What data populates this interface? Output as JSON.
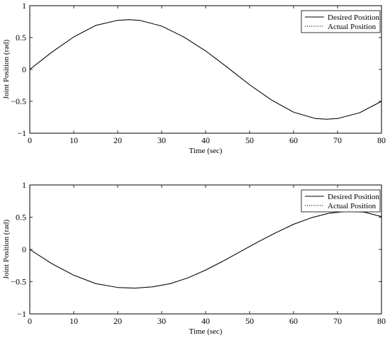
{
  "chart_data": [
    {
      "type": "line",
      "title": "",
      "xlabel": "Time (sec)",
      "ylabel": "Joint Position (rad)",
      "xlim": [
        0,
        80
      ],
      "ylim": [
        -1,
        1
      ],
      "xticks": [
        0,
        10,
        20,
        30,
        40,
        50,
        60,
        70,
        80
      ],
      "yticks": [
        -1,
        -0.5,
        0,
        0.5,
        1
      ],
      "xtick_labels": [
        "0",
        "10",
        "20",
        "30",
        "40",
        "50",
        "60",
        "70",
        "80"
      ],
      "ytick_labels": [
        "−1",
        "−0.5",
        "0",
        "0.5",
        "1"
      ],
      "grid": false,
      "legend_position": "top-right",
      "series": [
        {
          "name": "Desired Position",
          "style": "solid",
          "color": "#000000",
          "x": [
            0,
            5,
            10,
            15,
            20,
            22.5,
            25,
            30,
            35,
            40,
            45,
            50,
            55,
            60,
            65,
            67.5,
            70,
            75,
            80
          ],
          "y": [
            0,
            0.27,
            0.51,
            0.69,
            0.77,
            0.78,
            0.77,
            0.68,
            0.51,
            0.29,
            0.03,
            -0.24,
            -0.48,
            -0.67,
            -0.77,
            -0.78,
            -0.77,
            -0.68,
            -0.5
          ]
        },
        {
          "name": "Actual Position",
          "style": "dotted",
          "color": "#000000",
          "x": [
            0,
            5,
            10,
            15,
            20,
            22.5,
            25,
            30,
            35,
            40,
            45,
            50,
            55,
            60,
            65,
            67.5,
            70,
            75,
            80
          ],
          "y": [
            0,
            0.27,
            0.51,
            0.69,
            0.77,
            0.78,
            0.77,
            0.68,
            0.51,
            0.29,
            0.03,
            -0.24,
            -0.48,
            -0.67,
            -0.77,
            -0.78,
            -0.77,
            -0.68,
            -0.5
          ]
        }
      ]
    },
    {
      "type": "line",
      "title": "",
      "xlabel": "Time (sec)",
      "ylabel": "Joint Position (rad)",
      "xlim": [
        0,
        80
      ],
      "ylim": [
        -1,
        1
      ],
      "xticks": [
        0,
        10,
        20,
        30,
        40,
        50,
        60,
        70,
        80
      ],
      "yticks": [
        -1,
        -0.5,
        0,
        0.5,
        1
      ],
      "xtick_labels": [
        "0",
        "10",
        "20",
        "30",
        "40",
        "50",
        "60",
        "70",
        "80"
      ],
      "ytick_labels": [
        "−1",
        "−0.5",
        "0",
        "0.5",
        "1"
      ],
      "grid": false,
      "legend_position": "top-right",
      "series": [
        {
          "name": "Desired Position",
          "style": "solid",
          "color": "#000000",
          "x": [
            0,
            5,
            10,
            15,
            20,
            24,
            28,
            32,
            36,
            40,
            44,
            48,
            52,
            56,
            60,
            64,
            68,
            72,
            76,
            80
          ],
          "y": [
            0,
            -0.22,
            -0.4,
            -0.53,
            -0.59,
            -0.6,
            -0.58,
            -0.53,
            -0.44,
            -0.32,
            -0.18,
            -0.03,
            0.12,
            0.26,
            0.39,
            0.49,
            0.56,
            0.59,
            0.58,
            0.51
          ]
        },
        {
          "name": "Actual Position",
          "style": "dotted",
          "color": "#000000",
          "x": [
            0,
            5,
            10,
            15,
            20,
            24,
            28,
            32,
            36,
            40,
            44,
            48,
            52,
            56,
            60,
            64,
            68,
            72,
            76,
            80
          ],
          "y": [
            0,
            -0.22,
            -0.4,
            -0.53,
            -0.59,
            -0.6,
            -0.58,
            -0.53,
            -0.44,
            -0.32,
            -0.18,
            -0.03,
            0.12,
            0.26,
            0.39,
            0.49,
            0.56,
            0.59,
            0.58,
            0.51
          ]
        }
      ]
    }
  ]
}
